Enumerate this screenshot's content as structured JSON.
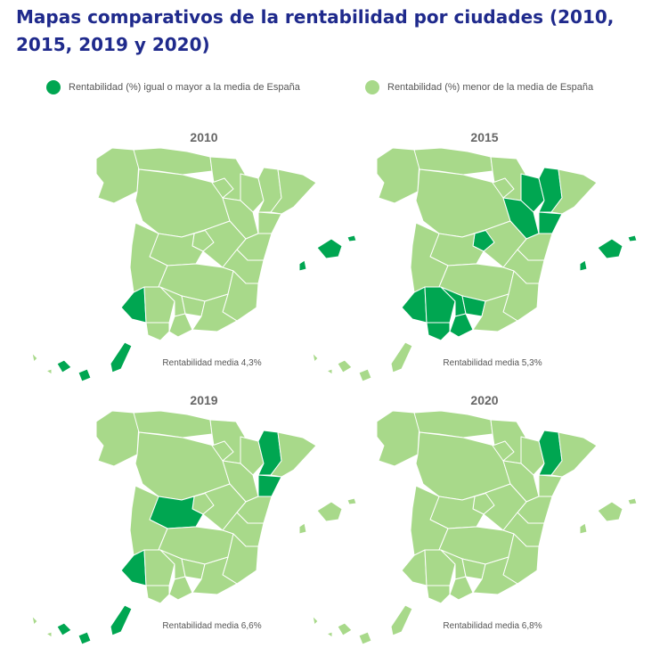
{
  "title": "Mapas comparativos de la rentabilidad por ciudades (2010, 2015, 2019 y 2020)",
  "colors": {
    "title": "#1f2a8c",
    "high": "#00a651",
    "low": "#a8d98a",
    "border": "#ffffff"
  },
  "legend": {
    "high_label": "Rentabilidad (%) igual o mayor a la media de España",
    "low_label": "Rentabilidad (%) menor de la media de España"
  },
  "maps": [
    {
      "year": "2010",
      "caption": "Rentabilidad media  4,3%",
      "above_average": [
        "Huelva",
        "Balearic Islands",
        "Canary Islands"
      ]
    },
    {
      "year": "2015",
      "caption": "Rentabilidad media  5,3%",
      "above_average": [
        "Huesca",
        "Zaragoza",
        "Lleida",
        "Tarragona",
        "Madrid",
        "Huelva",
        "Sevilla",
        "Córdoba",
        "Jaén",
        "Málaga",
        "Cádiz",
        "Balearic Islands"
      ]
    },
    {
      "year": "2019",
      "caption": "Rentabilidad media  6,6%",
      "above_average": [
        "Lleida",
        "Tarragona",
        "Toledo",
        "Huelva",
        "Canary Islands"
      ]
    },
    {
      "year": "2020",
      "caption": "Rentabilidad media  6,8%",
      "above_average": [
        "Lleida"
      ]
    }
  ]
}
